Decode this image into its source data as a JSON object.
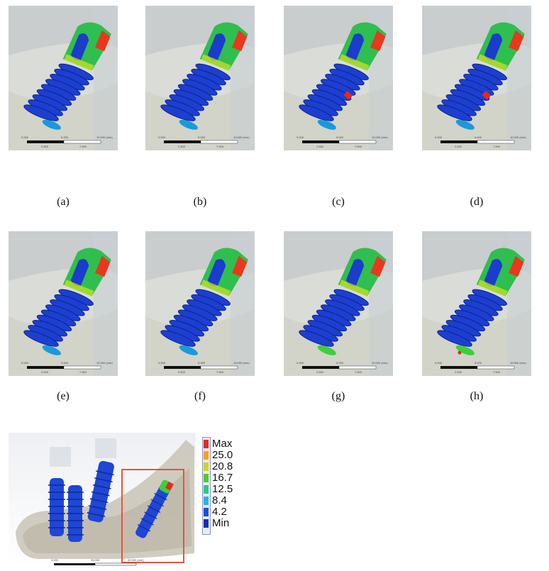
{
  "figure": {
    "panels": [
      {
        "id": "a",
        "caption": "(a)",
        "scale_ticks": [
          "0.000",
          "5.000",
          "10.000 (mm)"
        ],
        "scale_sub": [
          "2.500",
          "7.500"
        ]
      },
      {
        "id": "b",
        "caption": "(b)",
        "scale_ticks": [
          "0.000",
          "5.000",
          "10.000 (mm)"
        ],
        "scale_sub": [
          "2.500",
          "7.500"
        ]
      },
      {
        "id": "c",
        "caption": "(c)",
        "scale_ticks": [
          "0.000",
          "5.000",
          "10.000 (mm)"
        ],
        "scale_sub": [
          "2.500",
          "7.500"
        ]
      },
      {
        "id": "d",
        "caption": "(d)",
        "scale_ticks": [
          "0.000",
          "5.000",
          "10.000 (mm)"
        ],
        "scale_sub": [
          "2.500",
          "7.500"
        ]
      },
      {
        "id": "e",
        "caption": "(e)",
        "scale_ticks": [
          "0.000",
          "5.000",
          "10.000 (mm)"
        ],
        "scale_sub": [
          "2.500",
          "7.500"
        ]
      },
      {
        "id": "f",
        "caption": "(f)",
        "scale_ticks": [
          "0.000",
          "5.000",
          "10.000 (mm)"
        ],
        "scale_sub": [
          "2.500",
          "7.500"
        ]
      },
      {
        "id": "g",
        "caption": "(g)",
        "scale_ticks": [
          "0.000",
          "5.000",
          "10.000 (mm)"
        ],
        "scale_sub": [
          "2.500",
          "7.500"
        ]
      },
      {
        "id": "h",
        "caption": "(h)",
        "scale_ticks": [
          "0.000",
          "5.000",
          "10.000 (mm)"
        ],
        "scale_sub": [
          "2.500",
          "7.500"
        ]
      }
    ],
    "legend": {
      "labels": [
        "Max",
        "25.0",
        "20.8",
        "16.7",
        "12.5",
        "8.4",
        "4.2",
        "Min"
      ],
      "colors": [
        "#e8281e",
        "#f5a31a",
        "#c8d81e",
        "#52c92a",
        "#26c98a",
        "#25b5e0",
        "#1a52d8",
        "#1a2bb0"
      ]
    },
    "overview": {
      "scale_ticks": [
        "0.000",
        "20.000",
        "40.000 (mm)"
      ],
      "highlight_color": "#e2553f"
    }
  }
}
